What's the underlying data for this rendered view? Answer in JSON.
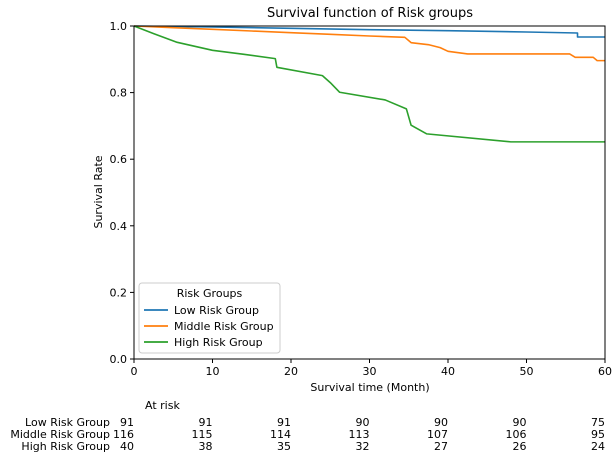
{
  "chart_data": {
    "type": "line",
    "title": "Survival function of Risk groups",
    "xlabel": "Survival time (Month)",
    "ylabel": "Survival Rate",
    "xlim": [
      0,
      60
    ],
    "ylim": [
      0,
      1.0
    ],
    "xticks": [
      0,
      10,
      20,
      30,
      40,
      50,
      60
    ],
    "yticks": [
      0.0,
      0.2,
      0.4,
      0.6,
      0.8,
      1.0
    ],
    "grid": false,
    "step": true,
    "legend": {
      "title": "Risk Groups",
      "position": "lower-left"
    },
    "series": [
      {
        "name": "Low Risk Group",
        "color": "#1f77b4",
        "points": [
          [
            0,
            1.0
          ],
          [
            10,
            0.997
          ],
          [
            20,
            0.993
          ],
          [
            30,
            0.989
          ],
          [
            40,
            0.986
          ],
          [
            50,
            0.982
          ],
          [
            56.5,
            0.979
          ],
          [
            56.5,
            0.967
          ],
          [
            60,
            0.967
          ]
        ]
      },
      {
        "name": "Middle Risk Group",
        "color": "#ff7f0e",
        "points": [
          [
            0,
            1.0
          ],
          [
            5,
            0.995
          ],
          [
            10,
            0.99
          ],
          [
            15,
            0.985
          ],
          [
            20,
            0.98
          ],
          [
            25,
            0.975
          ],
          [
            30,
            0.97
          ],
          [
            34.5,
            0.966
          ],
          [
            35.3,
            0.95
          ],
          [
            37.5,
            0.944
          ],
          [
            39,
            0.935
          ],
          [
            40,
            0.924
          ],
          [
            42.5,
            0.916
          ],
          [
            55.5,
            0.916
          ],
          [
            56.2,
            0.906
          ],
          [
            58.5,
            0.906
          ],
          [
            59,
            0.896
          ],
          [
            60,
            0.896
          ]
        ]
      },
      {
        "name": "High Risk Group",
        "color": "#2ca02c",
        "points": [
          [
            0,
            1.0
          ],
          [
            2.5,
            0.977
          ],
          [
            5.5,
            0.951
          ],
          [
            10,
            0.927
          ],
          [
            14,
            0.915
          ],
          [
            18,
            0.902
          ],
          [
            18.2,
            0.876
          ],
          [
            24,
            0.851
          ],
          [
            25,
            0.83
          ],
          [
            26.2,
            0.801
          ],
          [
            32,
            0.778
          ],
          [
            34.7,
            0.751
          ],
          [
            35.3,
            0.702
          ],
          [
            37.3,
            0.676
          ],
          [
            48,
            0.652
          ],
          [
            60,
            0.652
          ]
        ]
      }
    ],
    "at_risk": {
      "title": "At risk",
      "times": [
        0,
        10,
        20,
        30,
        40,
        50,
        60
      ],
      "rows": [
        {
          "label": "Low Risk Group",
          "values": [
            91,
            91,
            91,
            90,
            90,
            90,
            75
          ]
        },
        {
          "label": "Middle Risk Group",
          "values": [
            116,
            115,
            114,
            113,
            107,
            106,
            95
          ]
        },
        {
          "label": "High Risk Group",
          "values": [
            40,
            38,
            35,
            32,
            27,
            26,
            24
          ]
        }
      ]
    }
  }
}
